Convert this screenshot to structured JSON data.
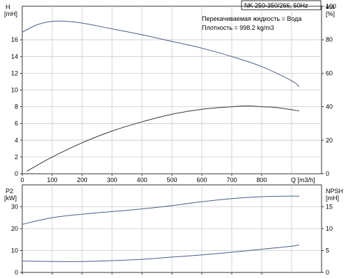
{
  "model_label": "NK 250-350/266, 50Hz",
  "liquid_text": "Перекачиваемая жидкость = Вода",
  "density_text": "Плотность = 998.2 kg/m3",
  "chart_data": [
    {
      "type": "line",
      "title": "",
      "grid": true,
      "xlabel": "Q [m3/h]",
      "xlim": [
        0,
        1000
      ],
      "x_ticks": [
        "0",
        "100",
        "200",
        "300",
        "400",
        "500",
        "600",
        "700",
        "800"
      ],
      "y_left_label_top": "H",
      "y_left_label_unit": "[mH]",
      "y_left_lim": [
        0,
        20
      ],
      "y_left_ticks": [
        "0",
        "2",
        "4",
        "6",
        "8",
        "10",
        "12",
        "14",
        "16"
      ],
      "y_right_label_top": "eta",
      "y_right_label_unit": "[%]",
      "y_right_lim": [
        0,
        100
      ],
      "y_right_ticks": [
        "0",
        "20",
        "40",
        "60",
        "80",
        "100"
      ],
      "series": [
        {
          "axis": "left",
          "color": "#4a5a8a",
          "x": [
            0,
            50,
            100,
            150,
            200,
            300,
            400,
            500,
            600,
            700,
            800,
            900,
            925
          ],
          "y": [
            16.9,
            17.8,
            18.2,
            18.2,
            18.0,
            17.3,
            16.6,
            15.8,
            15.0,
            14.0,
            12.8,
            11.1,
            10.4
          ]
        },
        {
          "axis": "left",
          "color": "#333333",
          "x": [
            15,
            100,
            200,
            300,
            400,
            500,
            600,
            700,
            750,
            800,
            850,
            925
          ],
          "y": [
            0.3,
            2.0,
            3.7,
            5.1,
            6.2,
            7.1,
            7.7,
            8.0,
            8.1,
            8.0,
            7.9,
            7.5
          ]
        }
      ]
    },
    {
      "type": "line",
      "title": "",
      "grid": true,
      "xlabel": "",
      "xlim": [
        0,
        1000
      ],
      "x_ticks": [
        "0",
        "100",
        "200",
        "300",
        "400",
        "500",
        "600",
        "700",
        "800"
      ],
      "y_left_label_top": "P2",
      "y_left_label_unit": "[kW]",
      "y_left_lim": [
        0,
        40
      ],
      "y_left_ticks": [
        "0",
        "10",
        "20",
        "30"
      ],
      "y_right_label_top": "NPSH",
      "y_right_label_unit": "[mH]",
      "y_right_lim": [
        0,
        20
      ],
      "y_right_ticks": [
        "0",
        "5",
        "10",
        "15"
      ],
      "series": [
        {
          "axis": "left",
          "color": "#4a5a8a",
          "x": [
            0,
            100,
            200,
            300,
            400,
            500,
            600,
            700,
            800,
            900,
            925
          ],
          "y": [
            22.0,
            25.0,
            26.6,
            27.8,
            29.0,
            30.5,
            32.3,
            33.7,
            34.6,
            34.9,
            34.8
          ]
        },
        {
          "axis": "right",
          "color": "#4a5a8a",
          "x": [
            0,
            100,
            200,
            300,
            400,
            500,
            600,
            700,
            800,
            900,
            925
          ],
          "y": [
            2.6,
            2.5,
            2.5,
            2.7,
            3.0,
            3.5,
            4.0,
            4.6,
            5.3,
            6.0,
            6.3
          ]
        }
      ]
    }
  ]
}
